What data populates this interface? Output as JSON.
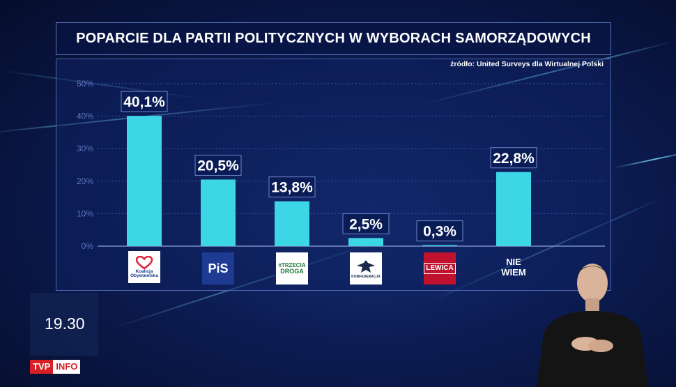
{
  "title": "POPARCIE DLA PARTII POLITYCZNYCH W WYBORACH SAMORZĄDOWYCH",
  "source": "źródło: United Surveys dla Wirtualnej Polski",
  "chart_data": {
    "type": "bar",
    "title": "POPARCIE DLA PARTII POLITYCZNYCH W WYBORACH SAMORZĄDOWYCH",
    "categories": [
      "Koalicja Obywatelska",
      "PiS",
      "Trzecia Droga",
      "Konfederacja",
      "Lewica",
      "NIE WIEM"
    ],
    "values": [
      40.1,
      20.5,
      13.8,
      2.5,
      0.3,
      22.8
    ],
    "value_labels": [
      "40,1%",
      "20,5%",
      "13,8%",
      "2,5%",
      "0,3%",
      "22,8%"
    ],
    "y_ticks": [
      "0%",
      "10%",
      "20%",
      "30%",
      "40%",
      "50%"
    ],
    "ylim": [
      0,
      50
    ],
    "grid": true,
    "bar_color": "#3dd6e6"
  },
  "logos": {
    "ko": {
      "text1": "Koalicja",
      "text2": "Obywatelska"
    },
    "pis": {
      "text": "PiS"
    },
    "td": {
      "text1": "#TRZECIA",
      "text2": "DROGA"
    },
    "konf": {
      "text": "KONFEDERACJA"
    },
    "lewica": {
      "text": "LEWICA"
    }
  },
  "nie_wiem": {
    "line1": "NIE",
    "line2": "WIEM"
  },
  "clock": "19.30",
  "channel": {
    "tvp": "TVP",
    "info": "INFO"
  }
}
